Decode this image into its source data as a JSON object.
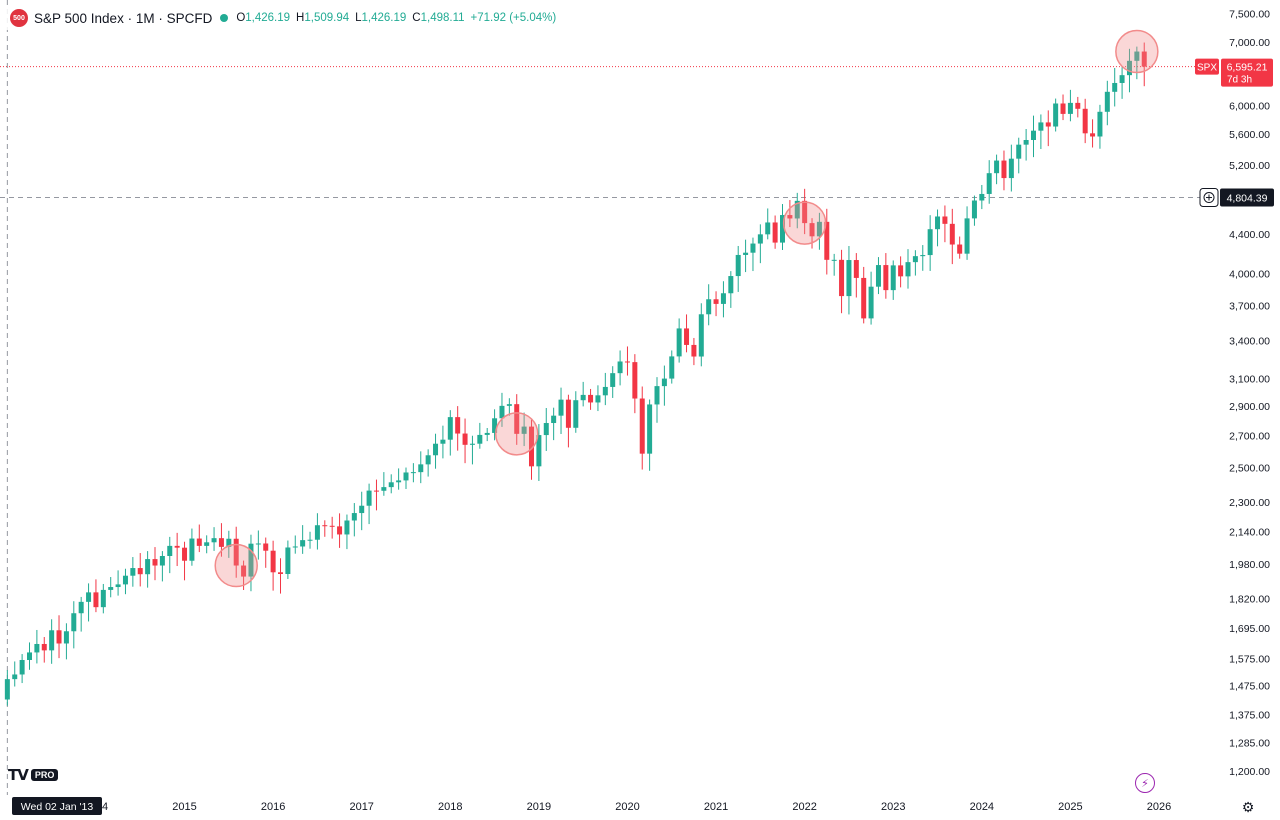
{
  "header": {
    "logo_text": "500",
    "title": "S&P 500 Index · 1M · SPCFD",
    "open_label": "O",
    "open": "1,426.19",
    "high_label": "H",
    "high": "1,509.94",
    "low_label": "L",
    "low": "1,426.19",
    "close_label": "C",
    "close": "1,498.11",
    "change": "+71.92 (+5.04%)"
  },
  "branding": {
    "logo": "TV",
    "badge": "PRO"
  },
  "colors": {
    "up": "#22ab94",
    "down": "#f23645",
    "highlight": "#f28b8b",
    "axis_text": "#131722"
  },
  "chart_data": {
    "type": "candlestick",
    "symbol": "SPX",
    "interval": "1M",
    "y_scale": "log",
    "ylim": [
      1185,
      7600
    ],
    "y_ticks": [
      "7,500.00",
      "7,000.00",
      "6,600.00",
      "6,000.00",
      "5,600.00",
      "5,200.00",
      "4,800.00",
      "4,400.00",
      "4,000.00",
      "3,700.00",
      "3,400.00",
      "3,100.00",
      "2,900.00",
      "2,700.00",
      "2,500.00",
      "2,300.00",
      "2,140.00",
      "1,980.00",
      "1,820.00",
      "1,695.00",
      "1,575.00",
      "1,475.00",
      "1,375.00",
      "1,285.00",
      "1,200.00"
    ],
    "x_ticks": [
      "2014",
      "2015",
      "2016",
      "2017",
      "2018",
      "2019",
      "2020",
      "2021",
      "2022",
      "2023",
      "2024",
      "2025",
      "2026"
    ],
    "last_price": {
      "label": "SPX",
      "value": "6,595.21",
      "countdown": "7d 3h"
    },
    "crosshair": {
      "price": "4,804.39",
      "date": "Wed 02 Jan '13"
    },
    "highlighted_dates": [
      "2015-08",
      "2018-10",
      "2022-01",
      "2025-10"
    ],
    "monthly_close": [
      [
        "2012-12",
        1426
      ],
      [
        "2013-01",
        1498
      ],
      [
        "2013-02",
        1515
      ],
      [
        "2013-03",
        1569
      ],
      [
        "2013-04",
        1598
      ],
      [
        "2013-05",
        1631
      ],
      [
        "2013-06",
        1606
      ],
      [
        "2013-07",
        1686
      ],
      [
        "2013-08",
        1633
      ],
      [
        "2013-09",
        1682
      ],
      [
        "2013-10",
        1757
      ],
      [
        "2013-11",
        1806
      ],
      [
        "2013-12",
        1848
      ],
      [
        "2014-01",
        1783
      ],
      [
        "2014-02",
        1859
      ],
      [
        "2014-03",
        1872
      ],
      [
        "2014-04",
        1884
      ],
      [
        "2014-05",
        1924
      ],
      [
        "2014-06",
        1960
      ],
      [
        "2014-07",
        1931
      ],
      [
        "2014-08",
        2003
      ],
      [
        "2014-09",
        1972
      ],
      [
        "2014-10",
        2018
      ],
      [
        "2014-11",
        2068
      ],
      [
        "2014-12",
        2059
      ],
      [
        "2015-01",
        1995
      ],
      [
        "2015-02",
        2105
      ],
      [
        "2015-03",
        2068
      ],
      [
        "2015-04",
        2086
      ],
      [
        "2015-05",
        2107
      ],
      [
        "2015-06",
        2063
      ],
      [
        "2015-07",
        2104
      ],
      [
        "2015-08",
        1972
      ],
      [
        "2015-09",
        1920
      ],
      [
        "2015-10",
        2079
      ],
      [
        "2015-11",
        2080
      ],
      [
        "2015-12",
        2044
      ],
      [
        "2016-01",
        1940
      ],
      [
        "2016-02",
        1932
      ],
      [
        "2016-03",
        2060
      ],
      [
        "2016-04",
        2065
      ],
      [
        "2016-05",
        2097
      ],
      [
        "2016-06",
        2099
      ],
      [
        "2016-07",
        2174
      ],
      [
        "2016-08",
        2171
      ],
      [
        "2016-09",
        2168
      ],
      [
        "2016-10",
        2126
      ],
      [
        "2016-11",
        2199
      ],
      [
        "2016-12",
        2239
      ],
      [
        "2017-01",
        2279
      ],
      [
        "2017-02",
        2364
      ],
      [
        "2017-03",
        2363
      ],
      [
        "2017-04",
        2384
      ],
      [
        "2017-05",
        2412
      ],
      [
        "2017-06",
        2423
      ],
      [
        "2017-07",
        2470
      ],
      [
        "2017-08",
        2472
      ],
      [
        "2017-09",
        2519
      ],
      [
        "2017-10",
        2575
      ],
      [
        "2017-11",
        2648
      ],
      [
        "2017-12",
        2674
      ],
      [
        "2018-01",
        2824
      ],
      [
        "2018-02",
        2714
      ],
      [
        "2018-03",
        2641
      ],
      [
        "2018-04",
        2648
      ],
      [
        "2018-05",
        2705
      ],
      [
        "2018-06",
        2718
      ],
      [
        "2018-07",
        2816
      ],
      [
        "2018-08",
        2902
      ],
      [
        "2018-09",
        2914
      ],
      [
        "2018-10",
        2712
      ],
      [
        "2018-11",
        2760
      ],
      [
        "2018-12",
        2507
      ],
      [
        "2019-01",
        2704
      ],
      [
        "2019-02",
        2784
      ],
      [
        "2019-03",
        2834
      ],
      [
        "2019-04",
        2946
      ],
      [
        "2019-05",
        2752
      ],
      [
        "2019-06",
        2942
      ],
      [
        "2019-07",
        2980
      ],
      [
        "2019-08",
        2926
      ],
      [
        "2019-09",
        2977
      ],
      [
        "2019-10",
        3038
      ],
      [
        "2019-11",
        3141
      ],
      [
        "2019-12",
        3231
      ],
      [
        "2020-01",
        3226
      ],
      [
        "2020-02",
        2954
      ],
      [
        "2020-03",
        2585
      ],
      [
        "2020-04",
        2912
      ],
      [
        "2020-05",
        3044
      ],
      [
        "2020-06",
        3100
      ],
      [
        "2020-07",
        3271
      ],
      [
        "2020-08",
        3500
      ],
      [
        "2020-09",
        3363
      ],
      [
        "2020-10",
        3270
      ],
      [
        "2020-11",
        3622
      ],
      [
        "2020-12",
        3756
      ],
      [
        "2021-01",
        3714
      ],
      [
        "2021-02",
        3811
      ],
      [
        "2021-03",
        3973
      ],
      [
        "2021-04",
        4181
      ],
      [
        "2021-05",
        4204
      ],
      [
        "2021-06",
        4298
      ],
      [
        "2021-07",
        4395
      ],
      [
        "2021-08",
        4523
      ],
      [
        "2021-09",
        4308
      ],
      [
        "2021-10",
        4605
      ],
      [
        "2021-11",
        4567
      ],
      [
        "2021-12",
        4766
      ],
      [
        "2022-01",
        4516
      ],
      [
        "2022-02",
        4374
      ],
      [
        "2022-03",
        4530
      ],
      [
        "2022-04",
        4132
      ],
      [
        "2022-05",
        4132
      ],
      [
        "2022-06",
        3785
      ],
      [
        "2022-07",
        4130
      ],
      [
        "2022-08",
        3955
      ],
      [
        "2022-09",
        3586
      ],
      [
        "2022-10",
        3872
      ],
      [
        "2022-11",
        4080
      ],
      [
        "2022-12",
        3840
      ],
      [
        "2023-01",
        4077
      ],
      [
        "2023-02",
        3970
      ],
      [
        "2023-03",
        4109
      ],
      [
        "2023-04",
        4169
      ],
      [
        "2023-05",
        4180
      ],
      [
        "2023-06",
        4450
      ],
      [
        "2023-07",
        4589
      ],
      [
        "2023-08",
        4508
      ],
      [
        "2023-09",
        4288
      ],
      [
        "2023-10",
        4194
      ],
      [
        "2023-11",
        4568
      ],
      [
        "2023-12",
        4770
      ],
      [
        "2024-01",
        4846
      ],
      [
        "2024-02",
        5096
      ],
      [
        "2024-03",
        5254
      ],
      [
        "2024-04",
        5036
      ],
      [
        "2024-05",
        5278
      ],
      [
        "2024-06",
        5460
      ],
      [
        "2024-07",
        5522
      ],
      [
        "2024-08",
        5648
      ],
      [
        "2024-09",
        5762
      ],
      [
        "2024-10",
        5705
      ],
      [
        "2024-11",
        6032
      ],
      [
        "2024-12",
        5882
      ],
      [
        "2025-01",
        6041
      ],
      [
        "2025-02",
        5955
      ],
      [
        "2025-03",
        5612
      ],
      [
        "2025-04",
        5569
      ],
      [
        "2025-05",
        5912
      ],
      [
        "2025-06",
        6205
      ],
      [
        "2025-07",
        6339
      ],
      [
        "2025-08",
        6460
      ],
      [
        "2025-09",
        6688
      ],
      [
        "2025-10",
        6840
      ],
      [
        "2025-11",
        6595
      ]
    ]
  }
}
